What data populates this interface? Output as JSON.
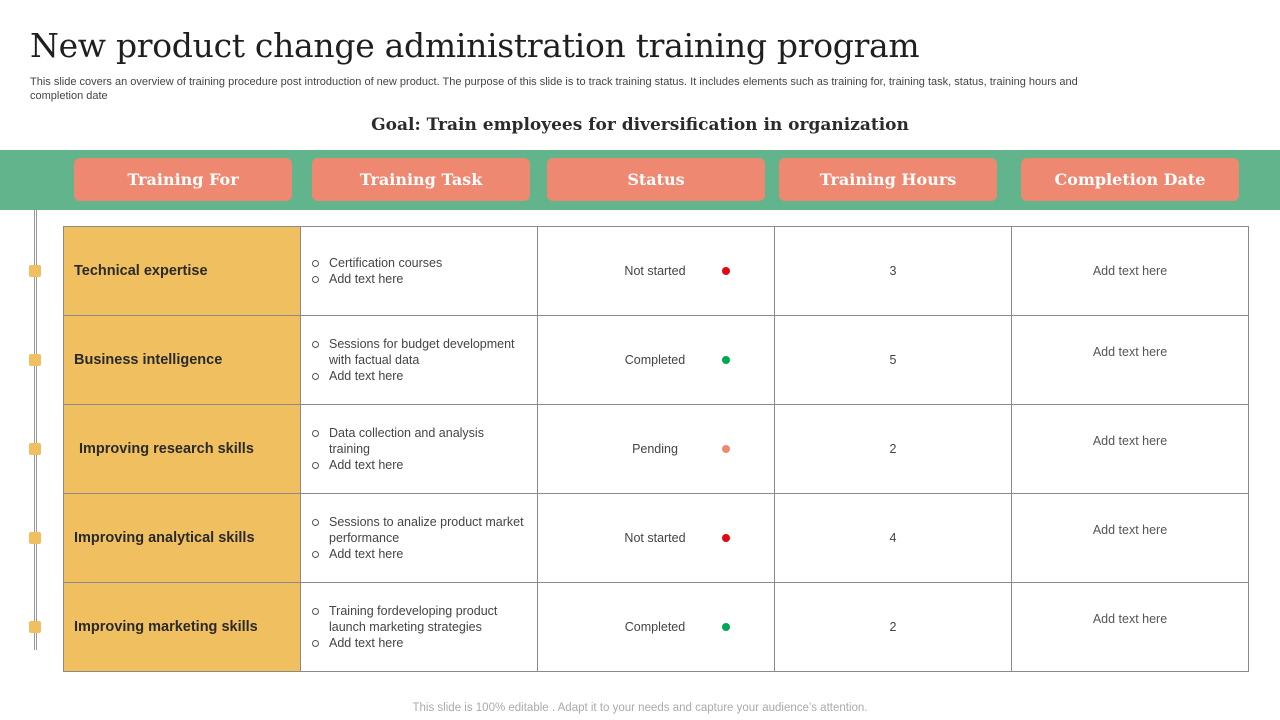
{
  "title": "New product change administration training program",
  "subtitle": "This slide covers an overview of training procedure post introduction of new product. The purpose of this slide is to track training status. It includes elements such as training for, training task, status, training hours and completion date",
  "goal": "Goal: Train employees for diversification in organization",
  "headers": [
    "Training For",
    "Training Task",
    "Status",
    "Training Hours",
    "Completion Date"
  ],
  "colors": {
    "band": "#62b48c",
    "header_button": "#ef8870",
    "category_cell": "#f0c060",
    "status_not_started": "#e30613",
    "status_completed": "#00a651",
    "status_pending": "#ef8870"
  },
  "rows": [
    {
      "training_for": "Technical expertise",
      "tasks": [
        "Certification courses",
        "Add text here"
      ],
      "status": "Not started",
      "status_color": "#e30613",
      "hours": "3",
      "completion_date": "Add text here"
    },
    {
      "training_for": "Business intelligence",
      "tasks": [
        "Sessions for budget development with factual data",
        "Add text here"
      ],
      "status": "Completed",
      "status_color": "#00a651",
      "hours": "5",
      "completion_date": "Add text here"
    },
    {
      "training_for": "Improving research skills",
      "tasks": [
        "Data collection and analysis training",
        "Add text here"
      ],
      "status": "Pending",
      "status_color": "#ef8870",
      "hours": "2",
      "completion_date": "Add text here"
    },
    {
      "training_for": "Improving analytical skills",
      "tasks": [
        "Sessions to analize product market performance",
        "Add text here"
      ],
      "status": "Not started",
      "status_color": "#e30613",
      "hours": "4",
      "completion_date": "Add text here"
    },
    {
      "training_for": "Improving marketing skills",
      "tasks": [
        "Training fordeveloping  product launch marketing strategies",
        "Add text here"
      ],
      "status": "Completed",
      "status_color": "#00a651",
      "hours": "2",
      "completion_date": "Add text here"
    }
  ],
  "footer": "This slide is 100% editable . Adapt it to your needs and capture your audience’s attention."
}
